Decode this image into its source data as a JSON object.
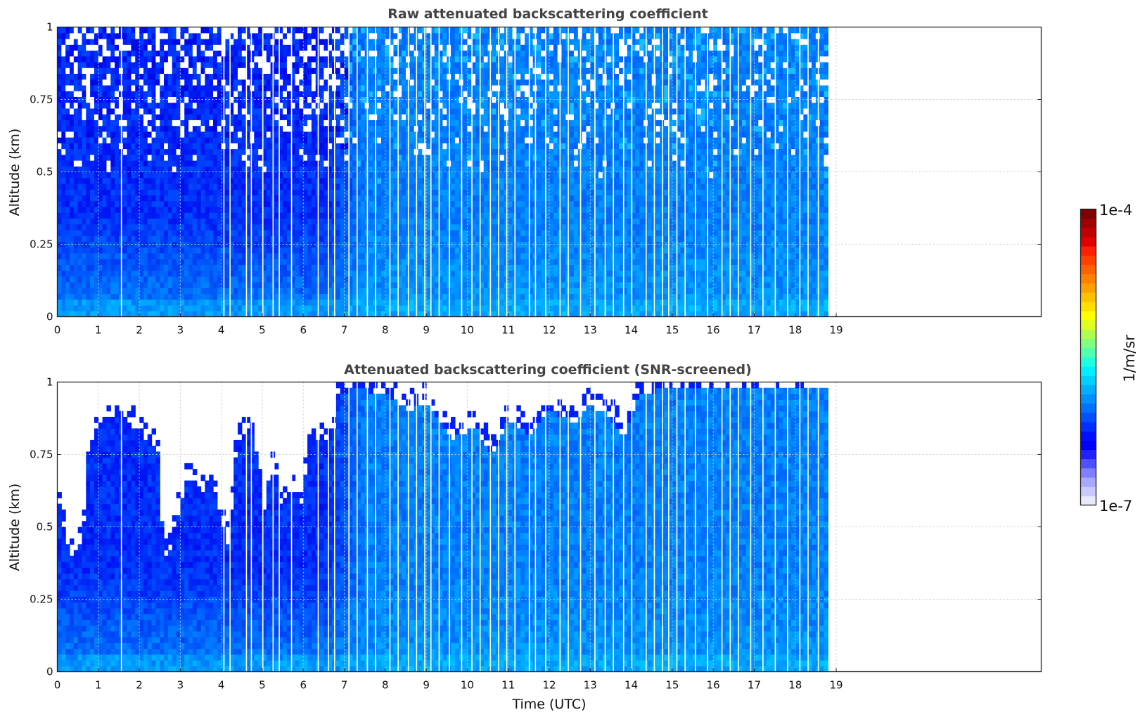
{
  "chart_data": [
    {
      "type": "heatmap",
      "title": "Raw attenuated backscattering coefficient",
      "xlabel": "",
      "ylabel": "Altitude (km)",
      "xlim": [
        0,
        24
      ],
      "ylim": [
        0,
        1
      ],
      "xticks": [
        "0",
        "1",
        "2",
        "3",
        "4",
        "5",
        "6",
        "7",
        "8",
        "9",
        "10",
        "11",
        "12",
        "13",
        "14",
        "15",
        "16",
        "17",
        "18",
        "19"
      ],
      "yticks": [
        "0",
        "0.25",
        "0.5",
        "0.75",
        "1"
      ],
      "data_end_time": 18.75,
      "grid": true,
      "gap_times": [
        1.55,
        4.05,
        4.2,
        4.6,
        4.72,
        5.0,
        5.25,
        5.4,
        5.7,
        6.35,
        6.6,
        6.75,
        7.1,
        7.3,
        7.55,
        7.75,
        8.1,
        8.3,
        8.55,
        8.75,
        8.95,
        9.1,
        9.3,
        9.55,
        9.85,
        10.1,
        10.3,
        10.55,
        10.75,
        10.95,
        11.15,
        11.5,
        11.65,
        11.9,
        12.25,
        12.45,
        12.75,
        13.1,
        13.35,
        13.55,
        13.8,
        14.0,
        14.35,
        14.55,
        14.75,
        14.9,
        15.1,
        15.3,
        15.55,
        15.85,
        16.2,
        16.4,
        16.6,
        16.9,
        17.2,
        17.5,
        17.8,
        18.1,
        18.3,
        18.55
      ],
      "description_values": {
        "colormap": "jet",
        "near_surface_intensity": "high (light blue)",
        "upper_levels_early_hours": "noisy, low (dark blue / white)"
      }
    },
    {
      "type": "heatmap",
      "title": "Attenuated backscattering coefficient (SNR-screened)",
      "xlabel": "Time (UTC)",
      "ylabel": "Altitude (km)",
      "xlim": [
        0,
        24
      ],
      "ylim": [
        0,
        1
      ],
      "xticks": [
        "0",
        "1",
        "2",
        "3",
        "4",
        "5",
        "6",
        "7",
        "8",
        "9",
        "10",
        "11",
        "12",
        "13",
        "14",
        "15",
        "16",
        "17",
        "18",
        "19"
      ],
      "yticks": [
        "0",
        "0.25",
        "0.5",
        "0.75",
        "1"
      ],
      "data_end_time": 18.75,
      "grid": true,
      "screen_top_profile": {
        "t": [
          0.0,
          0.1,
          0.2,
          0.3,
          0.45,
          0.6,
          0.7,
          0.72,
          0.9,
          1.2,
          1.6,
          1.9,
          2.2,
          2.45,
          2.6,
          2.7,
          2.85,
          3.0,
          3.2,
          3.5,
          3.8,
          4.05,
          4.2,
          4.3,
          4.45,
          4.7,
          4.9,
          5.05,
          5.15,
          5.3,
          5.45,
          5.6,
          5.75,
          5.95,
          6.1,
          6.3,
          6.45,
          6.6,
          6.75,
          6.85,
          7.2,
          8.0,
          8.6,
          9.0,
          9.6,
          10.2,
          10.6,
          11.0,
          11.5,
          12.0,
          12.6,
          13.0,
          13.5,
          13.8,
          13.9,
          14.2,
          15.0,
          16.0,
          17.0,
          18.0,
          18.75
        ],
        "z": [
          0.64,
          0.52,
          0.47,
          0.4,
          0.38,
          0.46,
          0.6,
          0.76,
          0.81,
          0.86,
          0.9,
          0.84,
          0.8,
          0.76,
          0.4,
          0.38,
          0.5,
          0.56,
          0.68,
          0.6,
          0.66,
          0.5,
          0.42,
          0.7,
          0.8,
          0.84,
          0.72,
          0.55,
          0.66,
          0.7,
          0.55,
          0.62,
          0.6,
          0.58,
          0.74,
          0.8,
          0.82,
          0.78,
          0.84,
          0.94,
          0.98,
          0.96,
          0.9,
          0.93,
          0.8,
          0.85,
          0.74,
          0.87,
          0.82,
          0.9,
          0.86,
          0.92,
          0.88,
          0.8,
          0.84,
          0.96,
          0.98,
          0.99,
          0.99,
          0.99,
          0.99
        ]
      },
      "gap_times": [
        1.55,
        4.05,
        4.2,
        4.6,
        4.72,
        5.0,
        5.25,
        5.4,
        5.7,
        6.35,
        6.6,
        6.75,
        7.1,
        7.3,
        7.55,
        7.75,
        8.1,
        8.3,
        8.55,
        8.75,
        8.95,
        9.1,
        9.3,
        9.55,
        9.85,
        10.1,
        10.3,
        10.55,
        10.75,
        10.95,
        11.15,
        11.5,
        11.65,
        11.9,
        12.25,
        12.45,
        12.75,
        13.1,
        13.35,
        13.55,
        13.8,
        14.0,
        14.35,
        14.55,
        14.75,
        14.9,
        15.1,
        15.3,
        15.55,
        15.85,
        16.2,
        16.4,
        16.6,
        16.9,
        17.2,
        17.5,
        17.8,
        18.1,
        18.3,
        18.55
      ]
    }
  ],
  "colorbar": {
    "label": "1/m/sr",
    "max_label": "1e-4",
    "min_label": "1e-7",
    "colormap": "jet",
    "colors": [
      "#e8e8ff",
      "#c8c8ff",
      "#a8a8ff",
      "#8080ff",
      "#5050ff",
      "#2020ff",
      "#0000ff",
      "#0010ff",
      "#0030ff",
      "#0050ff",
      "#0070ff",
      "#0090ff",
      "#00b0ff",
      "#00d0ff",
      "#00f0ff",
      "#20ffe0",
      "#50ffb0",
      "#80ff80",
      "#b0ff50",
      "#e0ff20",
      "#ffff00",
      "#ffe000",
      "#ffc000",
      "#ffa000",
      "#ff8000",
      "#ff6000",
      "#ff4000",
      "#ff2000",
      "#e00000",
      "#c00000",
      "#a00000",
      "#800000"
    ]
  }
}
